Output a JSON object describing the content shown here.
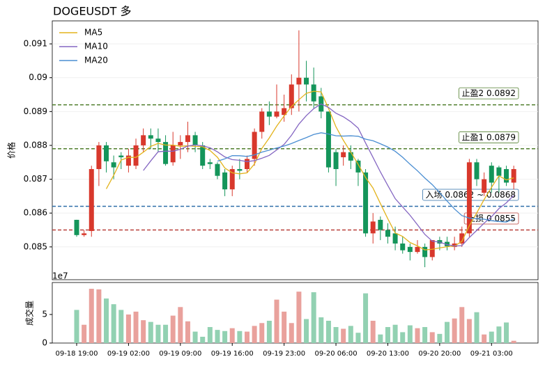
{
  "chart_data": [
    {
      "type": "candlestick",
      "title": "DOGEUSDT  多",
      "ylabel": "价格",
      "ylim": [
        0.08403,
        0.09168
      ],
      "yticks": [
        0.085,
        0.086,
        0.087,
        0.088,
        0.089,
        0.09,
        0.091
      ],
      "grid": true,
      "legend": "upper left",
      "up_color": "#d8382c",
      "down_color": "#14955a",
      "open": [
        0.0858,
        0.08535,
        0.08547,
        0.0873,
        0.088,
        0.0875,
        0.0877,
        0.0874,
        0.0874,
        0.088,
        0.0883,
        0.0882,
        0.0881,
        0.0875,
        0.088,
        0.0881,
        0.0883,
        0.088,
        0.0875,
        0.08745,
        0.0872,
        0.0867,
        0.0873,
        0.0873,
        0.0876,
        0.0884,
        0.089,
        0.08885,
        0.0889,
        0.0891,
        0.0898,
        0.09,
        0.0898,
        0.08945,
        0.089,
        0.0878,
        0.08765,
        0.0878,
        0.08755,
        0.0872,
        0.0854,
        0.0858,
        0.0855,
        0.0854,
        0.0851,
        0.085,
        0.08485,
        0.085,
        0.0847,
        0.0852,
        0.08515,
        0.085,
        0.0851,
        0.0854,
        0.0875,
        0.0866,
        0.0874,
        0.08735,
        0.0873,
        0.0869
      ],
      "high": [
        0.0858,
        0.0855,
        0.0874,
        0.0881,
        0.0881,
        0.0877,
        0.0878,
        0.0879,
        0.0882,
        0.0885,
        0.0885,
        0.0885,
        0.0883,
        0.0884,
        0.0883,
        0.0887,
        0.0884,
        0.0881,
        0.0876,
        0.0875,
        0.0873,
        0.0874,
        0.0876,
        0.0877,
        0.0885,
        0.0891,
        0.0893,
        0.0898,
        0.0895,
        0.0901,
        0.0914,
        0.0905,
        0.0903,
        0.0897,
        0.089,
        0.0879,
        0.088,
        0.088,
        0.0876,
        0.0873,
        0.086,
        0.0859,
        0.0857,
        0.0856,
        0.0853,
        0.0851,
        0.0852,
        0.0851,
        0.0852,
        0.0853,
        0.0853,
        0.0853,
        0.0856,
        0.0876,
        0.0876,
        0.0872,
        0.0875,
        0.0874,
        0.0874,
        0.0874
      ],
      "low": [
        0.0853,
        0.0853,
        0.0853,
        0.0868,
        0.0872,
        0.087,
        0.0873,
        0.0872,
        0.0873,
        0.0878,
        0.0879,
        0.0878,
        0.0874,
        0.0874,
        0.0876,
        0.0878,
        0.0878,
        0.0873,
        0.0873,
        0.087,
        0.0865,
        0.0865,
        0.087,
        0.0872,
        0.0874,
        0.0882,
        0.0886,
        0.0888,
        0.0887,
        0.0889,
        0.089,
        0.0893,
        0.0891,
        0.0888,
        0.0872,
        0.0868,
        0.0874,
        0.0873,
        0.0868,
        0.0853,
        0.0851,
        0.0852,
        0.0851,
        0.0849,
        0.0848,
        0.0846,
        0.0848,
        0.0844,
        0.0846,
        0.0849,
        0.0849,
        0.0849,
        0.085,
        0.0853,
        0.0868,
        0.0865,
        0.0866,
        0.0866,
        0.0868,
        0.0867
      ],
      "close": [
        0.08535,
        0.0854,
        0.0873,
        0.088,
        0.08753,
        0.08735,
        0.08765,
        0.0877,
        0.088,
        0.0883,
        0.0882,
        0.0881,
        0.08745,
        0.088,
        0.0881,
        0.0883,
        0.088,
        0.0874,
        0.08745,
        0.0871,
        0.0867,
        0.0873,
        0.08725,
        0.0876,
        0.0884,
        0.089,
        0.08885,
        0.089,
        0.0891,
        0.0898,
        0.09,
        0.0898,
        0.0893,
        0.089,
        0.08735,
        0.0873,
        0.0878,
        0.08755,
        0.0872,
        0.0854,
        0.08575,
        0.0855,
        0.0853,
        0.0851,
        0.0849,
        0.08485,
        0.085,
        0.0847,
        0.0852,
        0.0851,
        0.08502,
        0.0851,
        0.0854,
        0.0875,
        0.087,
        0.087,
        0.0869,
        0.0871,
        0.0869,
        0.0873
      ],
      "series": [
        {
          "name": "MA5",
          "color": "#e3b31c",
          "values": [
            null,
            null,
            null,
            null,
            0.086716,
            0.087116,
            0.087566,
            0.087646,
            0.087646,
            0.0878,
            0.08797,
            0.08806,
            0.08801,
            0.08801,
            0.08797,
            0.08799,
            0.08797,
            0.08796,
            0.08785,
            0.08765,
            0.08733,
            0.08719,
            0.08716,
            0.08719,
            0.08745,
            0.08791,
            0.08822,
            0.08857,
            0.08887,
            0.08915,
            0.08935,
            0.08954,
            0.0896,
            0.08958,
            0.08909,
            0.08855,
            0.08815,
            0.0878,
            0.08744,
            0.08705,
            0.08674,
            0.08628,
            0.08583,
            0.08541,
            0.08531,
            0.08513,
            0.08503,
            0.08491,
            0.08493,
            0.08497,
            0.085004,
            0.085024,
            0.085164,
            0.085624,
            0.086004,
            0.0864,
            0.08676,
            0.0871,
            0.08698,
            0.08704
          ]
        },
        {
          "name": "MA10",
          "color": "#8466c2",
          "values": [
            null,
            null,
            null,
            null,
            null,
            null,
            null,
            null,
            null,
            0.087258,
            0.087543,
            0.087813,
            0.087828,
            0.087828,
            0.087885,
            0.08798,
            0.088015,
            0.087985,
            0.08793,
            0.08781,
            0.08766,
            0.08758,
            0.08756,
            0.08752,
            0.08755,
            0.08762,
            0.087705,
            0.087865,
            0.08803,
            0.0883,
            0.08863,
            0.08888,
            0.089085,
            0.089225,
            0.08912,
            0.08895,
            0.088845,
            0.0887,
            0.08851,
            0.08807,
            0.087645,
            0.087215,
            0.086815,
            0.086425,
            0.08618,
            0.085935,
            0.085655,
            0.08537,
            0.08517,
            0.08514,
            0.085067,
            0.085027,
            0.085037,
            0.085277,
            0.085487,
            0.085702,
            0.085892,
            0.086132,
            0.086302,
            0.086522
          ]
        },
        {
          "name": "MA20",
          "color": "#4a8ed2",
          "values": [
            null,
            null,
            null,
            null,
            null,
            null,
            null,
            null,
            null,
            null,
            null,
            null,
            null,
            null,
            null,
            null,
            null,
            null,
            null,
            0.087534,
            0.087602,
            0.087697,
            0.087694,
            0.087674,
            0.087718,
            0.0878,
            0.08786,
            0.087925,
            0.08798,
            0.088055,
            0.088145,
            0.08823,
            0.088323,
            0.088373,
            0.088335,
            0.088285,
            0.088275,
            0.088283,
            0.08827,
            0.088185,
            0.088138,
            0.088048,
            0.08795,
            0.087825,
            0.08765,
            0.087443,
            0.08725,
            0.087035,
            0.08684,
            0.086605,
            0.086356,
            0.086121,
            0.085926,
            0.085851,
            0.085834,
            0.085819,
            0.085774,
            0.085751,
            0.085736,
            0.085831
          ]
        }
      ],
      "levels": [
        {
          "label": "止盈2 0.0892",
          "value": 0.0892,
          "color": "#4f7d2b"
        },
        {
          "label": "止盈1 0.0879",
          "value": 0.0879,
          "color": "#4f7d2b"
        },
        {
          "label": "入场 0.0862 ~ 0.0868",
          "value": 0.0862,
          "color": "#2f6fa8"
        },
        {
          "label": "止损 0.0855",
          "value": 0.0855,
          "color": "#b8403a"
        }
      ]
    },
    {
      "type": "bar",
      "ylabel": "成交量",
      "offset_label": "1e7",
      "ylim": [
        0,
        10.6
      ],
      "yticks": [
        0,
        5
      ],
      "up_color": "#e9a19c",
      "down_color": "#92d1b2",
      "categories": [
        "09-18 19:00",
        null,
        null,
        null,
        null,
        null,
        null,
        "09-19 02:00",
        null,
        null,
        null,
        null,
        null,
        null,
        "09-19 09:00",
        null,
        null,
        null,
        null,
        null,
        null,
        "09-19 16:00",
        null,
        null,
        null,
        null,
        null,
        null,
        "09-19 23:00",
        null,
        null,
        null,
        null,
        null,
        null,
        "09-20 06:00",
        null,
        null,
        null,
        null,
        null,
        null,
        "09-20 13:00",
        null,
        null,
        null,
        null,
        null,
        null,
        "09-20 20:00",
        null,
        null,
        null,
        null,
        null,
        null,
        "09-21 03:00",
        null,
        null,
        null
      ],
      "values": [
        5.8,
        3.2,
        9.5,
        9.4,
        7.8,
        6.8,
        5.8,
        5.0,
        5.5,
        4.0,
        3.7,
        3.2,
        3.2,
        4.8,
        6.3,
        3.8,
        2.0,
        1.1,
        2.8,
        2.3,
        2.1,
        2.6,
        2.1,
        2.0,
        3.0,
        3.5,
        3.9,
        7.6,
        5.5,
        3.5,
        9.0,
        4.2,
        8.9,
        4.5,
        3.9,
        2.8,
        2.5,
        3.0,
        1.8,
        8.7,
        3.9,
        1.5,
        2.8,
        3.2,
        1.9,
        3.1,
        2.6,
        2.8,
        1.9,
        1.6,
        3.7,
        4.3,
        6.3,
        4.2,
        5.4,
        1.5,
        2.0,
        2.9,
        3.6,
        0.4
      ]
    }
  ]
}
